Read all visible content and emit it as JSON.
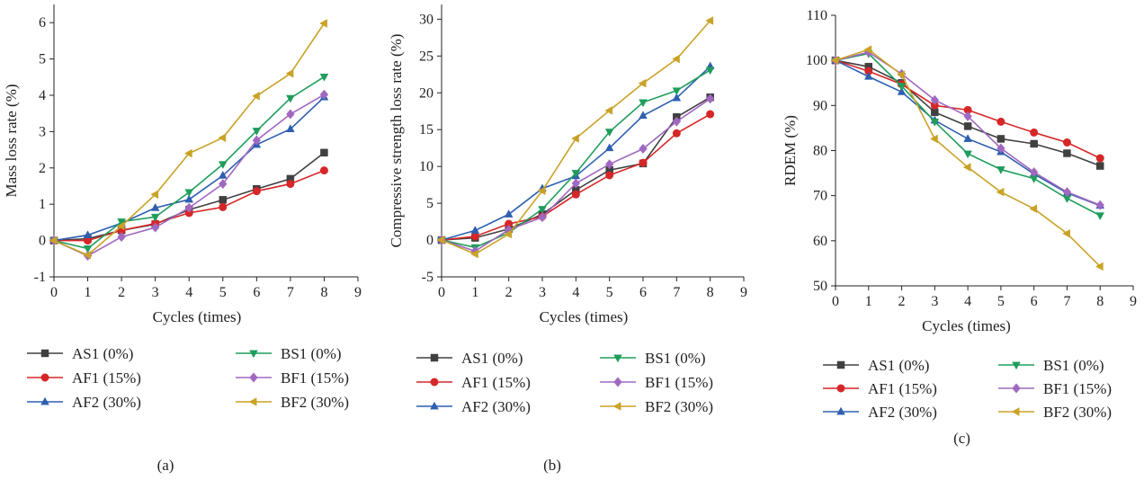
{
  "chart_data": [
    {
      "type": "line",
      "panel_label": "(a)",
      "xlabel": "Cycles (times)",
      "ylabel": "Mass loss rate (%)",
      "xlim": [
        0,
        9
      ],
      "ylim": [
        -1,
        6.5
      ],
      "xticks": [
        0,
        1,
        2,
        3,
        4,
        5,
        6,
        7,
        8,
        9
      ],
      "yticks": [
        -1,
        0,
        1,
        2,
        3,
        4,
        5,
        6
      ],
      "x": [
        0,
        1,
        2,
        3,
        4,
        5,
        6,
        7,
        8
      ],
      "legend_position": "bottom",
      "series": [
        {
          "name": "AS1 (0%)",
          "color": "#404040",
          "marker": "square",
          "values": [
            0,
            0.05,
            0.28,
            0.45,
            0.85,
            1.12,
            1.42,
            1.7,
            2.42
          ]
        },
        {
          "name": "AF1 (15%)",
          "color": "#d62728",
          "marker": "circle",
          "values": [
            0,
            0.0,
            0.28,
            0.47,
            0.76,
            0.92,
            1.36,
            1.56,
            1.93
          ]
        },
        {
          "name": "AF2 (30%)",
          "color": "#2e5fb0",
          "marker": "triangle-up",
          "values": [
            0,
            0.15,
            0.48,
            0.9,
            1.13,
            1.79,
            2.64,
            3.07,
            3.95
          ]
        },
        {
          "name": "BS1 (0%)",
          "color": "#1f9d5b",
          "marker": "triangle-down",
          "values": [
            0,
            -0.22,
            0.52,
            0.65,
            1.33,
            2.1,
            3.02,
            3.92,
            4.51
          ]
        },
        {
          "name": "BF1 (15%)",
          "color": "#a068c0",
          "marker": "diamond",
          "values": [
            0,
            -0.42,
            0.1,
            0.36,
            0.9,
            1.56,
            2.76,
            3.48,
            4.02
          ]
        },
        {
          "name": "BF2 (30%)",
          "color": "#c9a227",
          "marker": "triangle-left",
          "values": [
            0,
            -0.4,
            0.4,
            1.27,
            2.4,
            2.83,
            3.98,
            4.6,
            5.98
          ]
        }
      ]
    },
    {
      "type": "line",
      "panel_label": "(b)",
      "xlabel": "Cycles (times)",
      "ylabel": "Compressive strength loss rate (%)",
      "xlim": [
        0,
        9
      ],
      "ylim": [
        -5,
        32
      ],
      "xticks": [
        0,
        1,
        2,
        3,
        4,
        5,
        6,
        7,
        8,
        9
      ],
      "yticks": [
        -5,
        0,
        5,
        10,
        15,
        20,
        25,
        30
      ],
      "x": [
        0,
        1,
        2,
        3,
        4,
        5,
        6,
        7,
        8
      ],
      "legend_position": "bottom",
      "series": [
        {
          "name": "AS1 (0%)",
          "color": "#404040",
          "marker": "square",
          "values": [
            0,
            0.3,
            1.5,
            3.5,
            6.8,
            9.5,
            10.4,
            16.7,
            19.4
          ]
        },
        {
          "name": "AF1 (15%)",
          "color": "#d62728",
          "marker": "circle",
          "values": [
            0,
            0.5,
            2.2,
            3.2,
            6.2,
            8.8,
            10.5,
            14.5,
            17.1
          ]
        },
        {
          "name": "AF2 (30%)",
          "color": "#2e5fb0",
          "marker": "triangle-up",
          "values": [
            0,
            1.3,
            3.5,
            7.0,
            8.7,
            12.5,
            16.9,
            19.3,
            23.6
          ]
        },
        {
          "name": "BS1 (0%)",
          "color": "#1f9d5b",
          "marker": "triangle-down",
          "values": [
            0,
            -1.0,
            1.0,
            4.2,
            9.1,
            14.7,
            18.7,
            20.3,
            23.1
          ]
        },
        {
          "name": "BF1 (15%)",
          "color": "#a068c0",
          "marker": "diamond",
          "values": [
            0,
            -1.5,
            1.4,
            3.1,
            7.7,
            10.3,
            12.4,
            16.1,
            19.2
          ]
        },
        {
          "name": "BF2 (30%)",
          "color": "#c9a227",
          "marker": "triangle-left",
          "values": [
            0,
            -1.9,
            0.8,
            6.7,
            13.8,
            17.6,
            21.3,
            24.6,
            29.8
          ]
        }
      ]
    },
    {
      "type": "line",
      "panel_label": "(c)",
      "xlabel": "Cycles (times)",
      "ylabel": "RDEM (%)",
      "xlim": [
        0,
        9
      ],
      "ylim": [
        50,
        110
      ],
      "xticks": [
        0,
        1,
        2,
        3,
        4,
        5,
        6,
        7,
        8,
        9
      ],
      "yticks": [
        50,
        60,
        70,
        80,
        90,
        100,
        110
      ],
      "x": [
        0,
        1,
        2,
        3,
        4,
        5,
        6,
        7,
        8
      ],
      "legend_position": "bottom",
      "series": [
        {
          "name": "AS1 (0%)",
          "color": "#404040",
          "marker": "square",
          "values": [
            100,
            98.6,
            95.0,
            88.5,
            85.4,
            82.6,
            81.5,
            79.4,
            76.6
          ]
        },
        {
          "name": "AF1 (15%)",
          "color": "#d62728",
          "marker": "circle",
          "values": [
            100,
            97.6,
            94.7,
            90.0,
            89.0,
            86.4,
            84.0,
            81.8,
            78.3
          ]
        },
        {
          "name": "AF2 (30%)",
          "color": "#2e5fb0",
          "marker": "triangle-up",
          "values": [
            100,
            96.4,
            93.0,
            86.7,
            82.6,
            79.7,
            74.8,
            70.6,
            67.8
          ]
        },
        {
          "name": "BS1 (0%)",
          "color": "#1f9d5b",
          "marker": "triangle-down",
          "values": [
            100,
            101.5,
            94.3,
            86.4,
            79.3,
            75.8,
            73.8,
            69.4,
            65.6
          ]
        },
        {
          "name": "BF1 (15%)",
          "color": "#a068c0",
          "marker": "diamond",
          "values": [
            100,
            101.8,
            97.0,
            91.2,
            87.6,
            80.5,
            75.2,
            70.8,
            67.9
          ]
        },
        {
          "name": "BF2 (30%)",
          "color": "#c9a227",
          "marker": "triangle-left",
          "values": [
            100,
            102.4,
            96.8,
            82.6,
            76.3,
            70.8,
            67.1,
            61.6,
            54.3
          ]
        }
      ]
    }
  ]
}
